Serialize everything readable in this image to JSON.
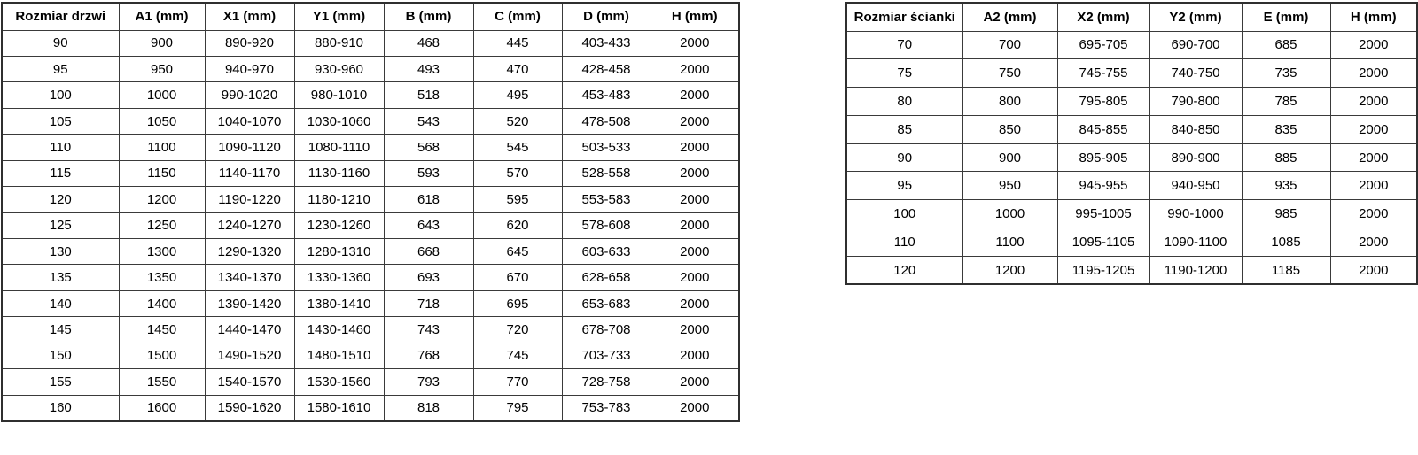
{
  "colors": {
    "background": "#ffffff",
    "border": "#3a3a3a",
    "text": "#000000"
  },
  "door_table": {
    "headers": [
      "Rozmiar drzwi",
      "A1 (mm)",
      "X1 (mm)",
      "Y1 (mm)",
      "B (mm)",
      "C (mm)",
      "D (mm)",
      "H (mm)"
    ],
    "rows": [
      [
        "90",
        "900",
        "890-920",
        "880-910",
        "468",
        "445",
        "403-433",
        "2000"
      ],
      [
        "95",
        "950",
        "940-970",
        "930-960",
        "493",
        "470",
        "428-458",
        "2000"
      ],
      [
        "100",
        "1000",
        "990-1020",
        "980-1010",
        "518",
        "495",
        "453-483",
        "2000"
      ],
      [
        "105",
        "1050",
        "1040-1070",
        "1030-1060",
        "543",
        "520",
        "478-508",
        "2000"
      ],
      [
        "110",
        "1100",
        "1090-1120",
        "1080-1110",
        "568",
        "545",
        "503-533",
        "2000"
      ],
      [
        "115",
        "1150",
        "1140-1170",
        "1130-1160",
        "593",
        "570",
        "528-558",
        "2000"
      ],
      [
        "120",
        "1200",
        "1190-1220",
        "1180-1210",
        "618",
        "595",
        "553-583",
        "2000"
      ],
      [
        "125",
        "1250",
        "1240-1270",
        "1230-1260",
        "643",
        "620",
        "578-608",
        "2000"
      ],
      [
        "130",
        "1300",
        "1290-1320",
        "1280-1310",
        "668",
        "645",
        "603-633",
        "2000"
      ],
      [
        "135",
        "1350",
        "1340-1370",
        "1330-1360",
        "693",
        "670",
        "628-658",
        "2000"
      ],
      [
        "140",
        "1400",
        "1390-1420",
        "1380-1410",
        "718",
        "695",
        "653-683",
        "2000"
      ],
      [
        "145",
        "1450",
        "1440-1470",
        "1430-1460",
        "743",
        "720",
        "678-708",
        "2000"
      ],
      [
        "150",
        "1500",
        "1490-1520",
        "1480-1510",
        "768",
        "745",
        "703-733",
        "2000"
      ],
      [
        "155",
        "1550",
        "1540-1570",
        "1530-1560",
        "793",
        "770",
        "728-758",
        "2000"
      ],
      [
        "160",
        "1600",
        "1590-1620",
        "1580-1610",
        "818",
        "795",
        "753-783",
        "2000"
      ]
    ]
  },
  "wall_table": {
    "headers": [
      "Rozmiar ścianki",
      "A2 (mm)",
      "X2 (mm)",
      "Y2 (mm)",
      "E (mm)",
      "H (mm)"
    ],
    "rows": [
      [
        "70",
        "700",
        "695-705",
        "690-700",
        "685",
        "2000"
      ],
      [
        "75",
        "750",
        "745-755",
        "740-750",
        "735",
        "2000"
      ],
      [
        "80",
        "800",
        "795-805",
        "790-800",
        "785",
        "2000"
      ],
      [
        "85",
        "850",
        "845-855",
        "840-850",
        "835",
        "2000"
      ],
      [
        "90",
        "900",
        "895-905",
        "890-900",
        "885",
        "2000"
      ],
      [
        "95",
        "950",
        "945-955",
        "940-950",
        "935",
        "2000"
      ],
      [
        "100",
        "1000",
        "995-1005",
        "990-1000",
        "985",
        "2000"
      ],
      [
        "110",
        "1100",
        "1095-1105",
        "1090-1100",
        "1085",
        "2000"
      ],
      [
        "120",
        "1200",
        "1195-1205",
        "1190-1200",
        "1185",
        "2000"
      ]
    ]
  }
}
